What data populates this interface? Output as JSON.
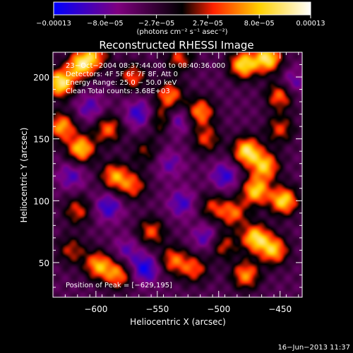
{
  "chart_data": {
    "type": "heatmap",
    "title": "Reconstructed RHESSI Image",
    "xlabel": "Heliocentric X (arcsec)",
    "ylabel": "Heliocentric Y (arcsec)",
    "xlim": [
      -635,
      -432
    ],
    "ylim": [
      22,
      220
    ],
    "xticks": [
      -600,
      -550,
      -500,
      -450
    ],
    "yticks": [
      50,
      100,
      150,
      200
    ],
    "xtick_labels": [
      "−600",
      "−550",
      "−500",
      "−450"
    ],
    "ytick_labels": [
      "50",
      "100",
      "150",
      "200"
    ],
    "colorbar": {
      "range": [
        -0.00013,
        0.00013
      ],
      "tick_labels": [
        "−0.00013",
        "−8.0e−05",
        "−2.7e−05",
        "2.7e−05",
        "8.0e−05",
        "0.00013"
      ],
      "unit_label": "(photons cm⁻² s⁻¹ asec⁻²)",
      "colors": [
        "#0000ff",
        "#7f007f",
        "#000000",
        "#ff2000",
        "#ffd000",
        "#ffffff"
      ]
    },
    "annotations": [
      "23−Oct−2004 08:37:44.000 to 08:40:36.000",
      "Detectors: 4F 5F 6F 7F 8F, Att 0",
      "Energy Range: 25.0 − 50.0 keV",
      "Clean    Total counts: 3.68E+03"
    ],
    "peak_label": "Position of Peak = [−629,195]",
    "peak": [
      -629,
      195
    ],
    "sources": [
      {
        "x": -629,
        "y": 195,
        "v": 1.0
      },
      {
        "x": -612,
        "y": 210,
        "v": 0.9
      },
      {
        "x": -628,
        "y": 160,
        "v": 0.75
      },
      {
        "x": -612,
        "y": 142,
        "v": 0.85
      },
      {
        "x": -600,
        "y": 218,
        "v": 0.55
      },
      {
        "x": -590,
        "y": 158,
        "v": 0.6
      },
      {
        "x": -570,
        "y": 200,
        "v": 0.55
      },
      {
        "x": -540,
        "y": 185,
        "v": 0.65
      },
      {
        "x": -545,
        "y": 165,
        "v": 0.55
      },
      {
        "x": -532,
        "y": 215,
        "v": 0.5
      },
      {
        "x": -515,
        "y": 172,
        "v": 0.7
      },
      {
        "x": -510,
        "y": 150,
        "v": 0.5
      },
      {
        "x": -480,
        "y": 210,
        "v": 0.9
      },
      {
        "x": -460,
        "y": 215,
        "v": 0.95
      },
      {
        "x": -450,
        "y": 185,
        "v": 0.65
      },
      {
        "x": -477,
        "y": 140,
        "v": 0.95
      },
      {
        "x": -462,
        "y": 128,
        "v": 0.8
      },
      {
        "x": -470,
        "y": 108,
        "v": 0.85
      },
      {
        "x": -447,
        "y": 100,
        "v": 0.9
      },
      {
        "x": -488,
        "y": 90,
        "v": 0.6
      },
      {
        "x": -470,
        "y": 70,
        "v": 0.9
      },
      {
        "x": -455,
        "y": 60,
        "v": 0.8
      },
      {
        "x": -478,
        "y": 40,
        "v": 0.7
      },
      {
        "x": -497,
        "y": 64,
        "v": 0.5
      },
      {
        "x": -585,
        "y": 120,
        "v": 0.7
      },
      {
        "x": -570,
        "y": 112,
        "v": 0.55
      },
      {
        "x": -555,
        "y": 75,
        "v": 0.55
      },
      {
        "x": -537,
        "y": 52,
        "v": 0.6
      },
      {
        "x": -520,
        "y": 45,
        "v": 0.55
      },
      {
        "x": -598,
        "y": 48,
        "v": 0.75
      },
      {
        "x": -582,
        "y": 40,
        "v": 0.65
      },
      {
        "x": -620,
        "y": 60,
        "v": 0.45
      },
      {
        "x": -615,
        "y": 92,
        "v": 0.5
      },
      {
        "x": -505,
        "y": 95,
        "v": 0.45
      },
      {
        "x": -560,
        "y": 140,
        "v": 0.35
      },
      {
        "x": -450,
        "y": 158,
        "v": 0.5
      },
      {
        "x": -560,
        "y": 45,
        "v": -0.55
      },
      {
        "x": -535,
        "y": 165,
        "v": -0.5
      },
      {
        "x": -565,
        "y": 170,
        "v": -0.45
      },
      {
        "x": -495,
        "y": 120,
        "v": -0.45
      },
      {
        "x": -530,
        "y": 98,
        "v": -0.4
      },
      {
        "x": -590,
        "y": 95,
        "v": -0.45
      },
      {
        "x": -605,
        "y": 175,
        "v": -0.35
      },
      {
        "x": -510,
        "y": 70,
        "v": -0.4
      },
      {
        "x": -440,
        "y": 195,
        "v": -0.35
      },
      {
        "x": -575,
        "y": 60,
        "v": -0.3
      },
      {
        "x": -620,
        "y": 120,
        "v": -0.35
      },
      {
        "x": -540,
        "y": 130,
        "v": -0.3
      }
    ]
  },
  "footer": {
    "timestamp": "16−Jun−2013 11:37"
  }
}
